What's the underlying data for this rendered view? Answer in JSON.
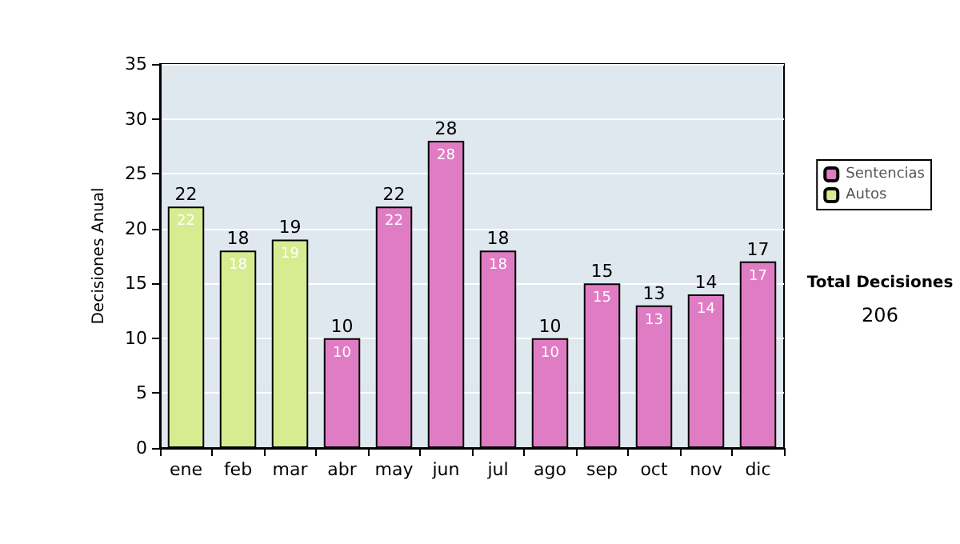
{
  "chart_data": {
    "type": "bar",
    "ylabel": "Decisiones Anual",
    "categories": [
      "ene",
      "feb",
      "mar",
      "abr",
      "may",
      "jun",
      "jul",
      "ago",
      "sep",
      "oct",
      "nov",
      "dic"
    ],
    "series": [
      {
        "name": "Sentencias",
        "color": "#e07cc4",
        "values": [
          null,
          null,
          null,
          10,
          22,
          28,
          18,
          10,
          15,
          13,
          14,
          17
        ]
      },
      {
        "name": "Autos",
        "color": "#d6ec90",
        "values": [
          22,
          18,
          19,
          null,
          null,
          null,
          null,
          null,
          null,
          null,
          null,
          null
        ]
      }
    ],
    "stacked": true,
    "data_labels": true,
    "totals": [
      "22",
      "18",
      "19",
      "10",
      "22",
      "28",
      "18",
      "10",
      "15",
      "13",
      "14",
      "17"
    ],
    "ylim": [
      0,
      35
    ],
    "yticks": [
      0,
      5,
      10,
      15,
      20,
      25,
      30,
      35
    ],
    "grid": "y",
    "legend": "right",
    "annotations": [
      "Total Decisiones",
      "206"
    ]
  }
}
